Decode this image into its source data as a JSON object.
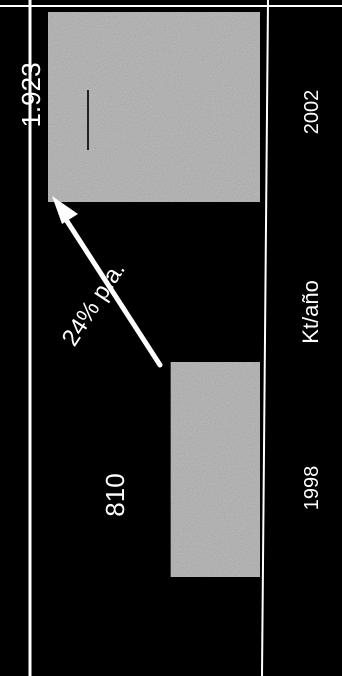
{
  "chart_data": {
    "type": "bar",
    "orientation": "rotated-90",
    "categories": [
      "1998",
      "2002"
    ],
    "values": [
      810,
      1923
    ],
    "value_labels": [
      "810",
      "1.923"
    ],
    "unit_label": "Kt/año",
    "growth_annotation": "24% p.a.",
    "colors": {
      "background": "#000000",
      "bar": "#bdbdbd",
      "text": "#ffffff",
      "axis": "#ffffff"
    }
  }
}
